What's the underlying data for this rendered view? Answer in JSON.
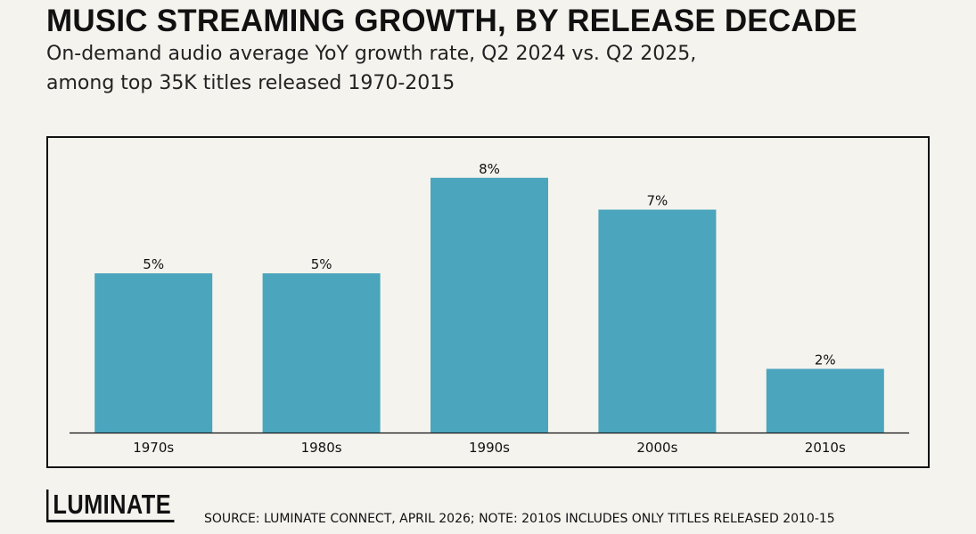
{
  "header": {
    "title": "MUSIC STREAMING GROWTH, BY RELEASE DECADE",
    "subtitle_line1": "On-demand audio average YoY growth rate, Q2 2024 vs. Q2 2025,",
    "subtitle_line2": "among top 35K titles released 1970-2015"
  },
  "footer": {
    "logo_text": "LUMINATE",
    "source": "SOURCE: LUMINATE CONNECT, APRIL 2026; NOTE: 2010S INCLUDES ONLY TITLES RELEASED 2010-15"
  },
  "chart_data": {
    "type": "bar",
    "title": "MUSIC STREAMING GROWTH, BY RELEASE DECADE",
    "categories": [
      "1970s",
      "1980s",
      "1990s",
      "2000s",
      "2010s"
    ],
    "values": [
      5,
      5,
      8,
      7,
      2
    ],
    "data_labels": [
      "5%",
      "5%",
      "8%",
      "7%",
      "2%"
    ],
    "xlabel": "",
    "ylabel": "",
    "ylim": [
      0,
      9
    ],
    "unit": "%",
    "grid": false,
    "legend": "none",
    "bar_color": "#4aa5bd"
  }
}
